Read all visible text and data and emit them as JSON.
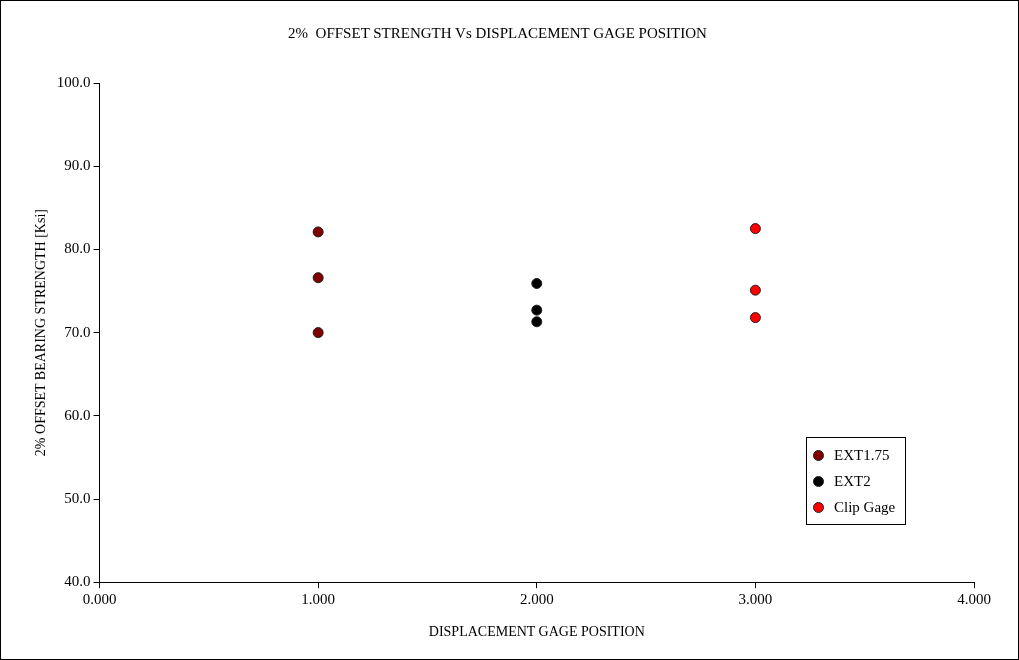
{
  "chart_data": {
    "type": "scatter",
    "title": "2%  OFFSET STRENGTH Vs DISPLACEMENT GAGE POSITION",
    "xlabel": "DISPLACEMENT GAGE POSITION",
    "ylabel": "2% OFFSET BEARING STRENGTH [Ksi]",
    "xlim": [
      0,
      4
    ],
    "xticks": [
      {
        "value": 0,
        "label": "0.000"
      },
      {
        "value": 1,
        "label": "1.000"
      },
      {
        "value": 2,
        "label": "2.000"
      },
      {
        "value": 3,
        "label": "3.000"
      },
      {
        "value": 4,
        "label": "4.000"
      }
    ],
    "ylim": [
      40,
      100
    ],
    "yticks": [
      {
        "value": 40,
        "label": "40.0"
      },
      {
        "value": 50,
        "label": "50.0"
      },
      {
        "value": 60,
        "label": "60.0"
      },
      {
        "value": 70,
        "label": "70.0"
      },
      {
        "value": 80,
        "label": "80.0"
      },
      {
        "value": 90,
        "label": "90.0"
      },
      {
        "value": 100,
        "label": "100.0"
      }
    ],
    "series": [
      {
        "name": "EXT1.75",
        "color": "#800000",
        "x": [
          1,
          1,
          1
        ],
        "values": [
          82.1,
          76.6,
          70.0
        ]
      },
      {
        "name": "EXT2",
        "color": "#000000",
        "x": [
          2,
          2,
          2
        ],
        "values": [
          75.9,
          72.7,
          71.3
        ]
      },
      {
        "name": "Clip Gage",
        "color": "#ff0000",
        "x": [
          3,
          3,
          3
        ],
        "values": [
          82.5,
          75.1,
          71.8
        ]
      }
    ],
    "marker": "circle",
    "grid": false,
    "legend": "bottom right"
  }
}
